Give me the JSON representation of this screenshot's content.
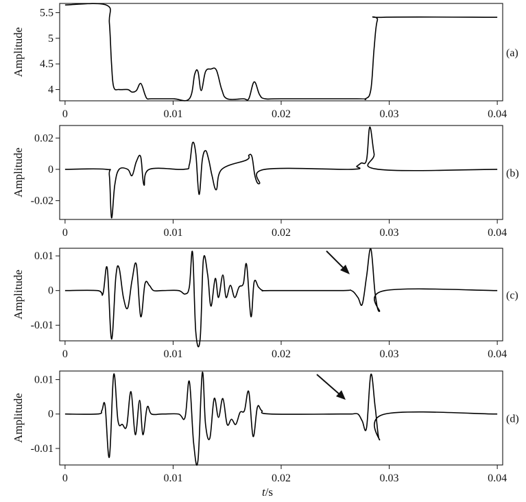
{
  "chart_data": [
    {
      "panel": "(a)",
      "type": "line",
      "ylabel": "Amplitude",
      "xlim": [
        -0.0005,
        0.0405
      ],
      "ylim": [
        3.78,
        5.68
      ],
      "xticks": [
        0,
        0.01,
        0.02,
        0.03,
        0.04
      ],
      "xtick_labels": [
        "0",
        "0.01",
        "0.02",
        "0.03",
        "0.04"
      ],
      "yticks": [
        4,
        4.5,
        5,
        5.5
      ],
      "ytick_labels": [
        "4",
        "4.5",
        "5",
        "5.5"
      ],
      "series": [
        {
          "x": [
            0,
            0.0038,
            0.0041,
            0.0043,
            0.0045,
            0.005,
            0.0058,
            0.0062,
            0.0066,
            0.007,
            0.0074,
            0.0076,
            0.008,
            0.01,
            0.0115,
            0.012,
            0.0123,
            0.0126,
            0.013,
            0.0135,
            0.014,
            0.0145,
            0.015,
            0.0165,
            0.017,
            0.0175,
            0.018,
            0.0185,
            0.02,
            0.027,
            0.0278,
            0.0283,
            0.0286,
            0.0289,
            0.0295,
            0.04
          ],
          "y": [
            5.65,
            5.65,
            5.3,
            4.5,
            4.05,
            4.0,
            4.0,
            3.95,
            3.98,
            4.12,
            3.9,
            3.82,
            3.82,
            3.82,
            3.82,
            4.3,
            4.35,
            3.98,
            4.35,
            4.4,
            4.38,
            4.0,
            3.82,
            3.82,
            3.82,
            4.15,
            3.9,
            3.82,
            3.82,
            3.82,
            3.82,
            4.0,
            4.8,
            5.35,
            5.41,
            5.41
          ]
        }
      ]
    },
    {
      "panel": "(b)",
      "type": "line",
      "ylabel": "Amplitude",
      "xlim": [
        -0.0005,
        0.0405
      ],
      "ylim": [
        -0.032,
        0.028
      ],
      "xticks": [
        0,
        0.01,
        0.02,
        0.03,
        0.04
      ],
      "xtick_labels": [
        "0",
        "0.01",
        "0.02",
        "0.03",
        "0.04"
      ],
      "yticks": [
        -0.02,
        0,
        0.02
      ],
      "ytick_labels": [
        "-0.02",
        "0",
        "0.02"
      ],
      "series": [
        {
          "x": [
            0,
            0.0038,
            0.0041,
            0.0043,
            0.0046,
            0.005,
            0.0058,
            0.0062,
            0.0066,
            0.007,
            0.0073,
            0.0078,
            0.011,
            0.0115,
            0.0118,
            0.0121,
            0.0124,
            0.0127,
            0.013,
            0.0133,
            0.0136,
            0.014,
            0.0145,
            0.0168,
            0.017,
            0.0173,
            0.0176,
            0.018,
            0.0185,
            0.0265,
            0.027,
            0.0274,
            0.0279,
            0.0282,
            0.0286,
            0.029,
            0.04
          ],
          "y": [
            0,
            0,
            -0.004,
            -0.031,
            -0.01,
            0,
            0,
            -0.004,
            0.005,
            0.008,
            -0.01,
            0,
            0,
            0.003,
            0.017,
            0.01,
            -0.016,
            0.006,
            0.012,
            0.006,
            -0.004,
            -0.013,
            0,
            0.006,
            0.009,
            0.008,
            -0.005,
            -0.009,
            0,
            0,
            0.002,
            0.004,
            0.006,
            0.027,
            0.01,
            0,
            0
          ]
        }
      ]
    },
    {
      "panel": "(c)",
      "type": "line",
      "ylabel": "Amplitude",
      "xlim": [
        -0.0005,
        0.0405
      ],
      "ylim": [
        -0.0145,
        0.0122
      ],
      "xticks": [
        0,
        0.01,
        0.02,
        0.03,
        0.04
      ],
      "xtick_labels": [
        "0",
        "0.01",
        "0.02",
        "0.03",
        "0.04"
      ],
      "yticks": [
        -0.01,
        0,
        0.01
      ],
      "ytick_labels": [
        "-0.01",
        "0",
        "0.01"
      ],
      "series": [
        {
          "x": [
            0,
            0.003,
            0.0035,
            0.0039,
            0.0043,
            0.0047,
            0.005,
            0.0054,
            0.0058,
            0.0062,
            0.0066,
            0.007,
            0.0074,
            0.0078,
            0.0082,
            0.009,
            0.0105,
            0.0111,
            0.0115,
            0.0118,
            0.0121,
            0.0125,
            0.0128,
            0.0132,
            0.0135,
            0.0139,
            0.0142,
            0.0146,
            0.0149,
            0.0153,
            0.0157,
            0.0161,
            0.0165,
            0.0168,
            0.0172,
            0.0175,
            0.0179,
            0.0183,
            0.019,
            0.0255,
            0.0265,
            0.0271,
            0.0275,
            0.0279,
            0.0283,
            0.0287,
            0.0291,
            0.0296,
            0.04
          ],
          "y": [
            0,
            0,
            -0.001,
            0.0065,
            -0.014,
            0.004,
            0.0065,
            -0.002,
            -0.005,
            0.003,
            0.0075,
            -0.0075,
            0.002,
            0.0015,
            0,
            0,
            0,
            -0.001,
            0.001,
            0.011,
            -0.012,
            -0.014,
            0.009,
            0.0045,
            -0.0045,
            0.0035,
            -0.002,
            0.0045,
            -0.002,
            0.0015,
            -0.002,
            0.001,
            0.002,
            0.0075,
            -0.0075,
            0.0025,
            0.001,
            0,
            0,
            0,
            0,
            -0.002,
            -0.004,
            0.004,
            0.012,
            -0.001,
            -0.006,
            0,
            0
          ]
        }
      ]
    },
    {
      "panel": "(d)",
      "type": "line",
      "ylabel": "Amplitude",
      "xlim": [
        -0.0005,
        0.0405
      ],
      "ylim": [
        -0.0148,
        0.0125
      ],
      "xticks": [
        0,
        0.01,
        0.02,
        0.03,
        0.04
      ],
      "xtick_labels": [
        "0",
        "0.01",
        "0.02",
        "0.03",
        "0.04"
      ],
      "yticks": [
        -0.01,
        0,
        0.01
      ],
      "ytick_labels": [
        "-0.01",
        "0",
        "0.01"
      ],
      "series": [
        {
          "x": [
            0,
            0.003,
            0.0034,
            0.0037,
            0.0041,
            0.0045,
            0.0049,
            0.0053,
            0.0057,
            0.0061,
            0.0065,
            0.0069,
            0.0072,
            0.0076,
            0.008,
            0.009,
            0.0105,
            0.0111,
            0.0115,
            0.0119,
            0.0123,
            0.0127,
            0.013,
            0.0134,
            0.0138,
            0.0142,
            0.0146,
            0.015,
            0.0154,
            0.0158,
            0.0162,
            0.0166,
            0.017,
            0.0174,
            0.0178,
            0.0182,
            0.019,
            0.0255,
            0.0265,
            0.0271,
            0.0275,
            0.0279,
            0.0283,
            0.0287,
            0.0291,
            0.0296,
            0.04
          ],
          "y": [
            0,
            0,
            0.001,
            0.0025,
            -0.0125,
            0.0115,
            -0.002,
            -0.003,
            -0.0035,
            0.0065,
            -0.006,
            0.004,
            -0.006,
            0.002,
            0,
            0,
            0,
            -0.001,
            0.0095,
            -0.0085,
            -0.0135,
            0.012,
            -0.003,
            -0.007,
            0.0045,
            -0.001,
            0.0045,
            -0.003,
            -0.0015,
            -0.003,
            0.0005,
            0.001,
            0.0065,
            -0.0065,
            0.002,
            0.001,
            0,
            0,
            0,
            0,
            -0.002,
            -0.004,
            0.0115,
            0.002,
            -0.0075,
            0,
            0
          ]
        }
      ]
    }
  ],
  "figure": {
    "xlabel_italic": "t",
    "xlabel_unit": "/s"
  }
}
